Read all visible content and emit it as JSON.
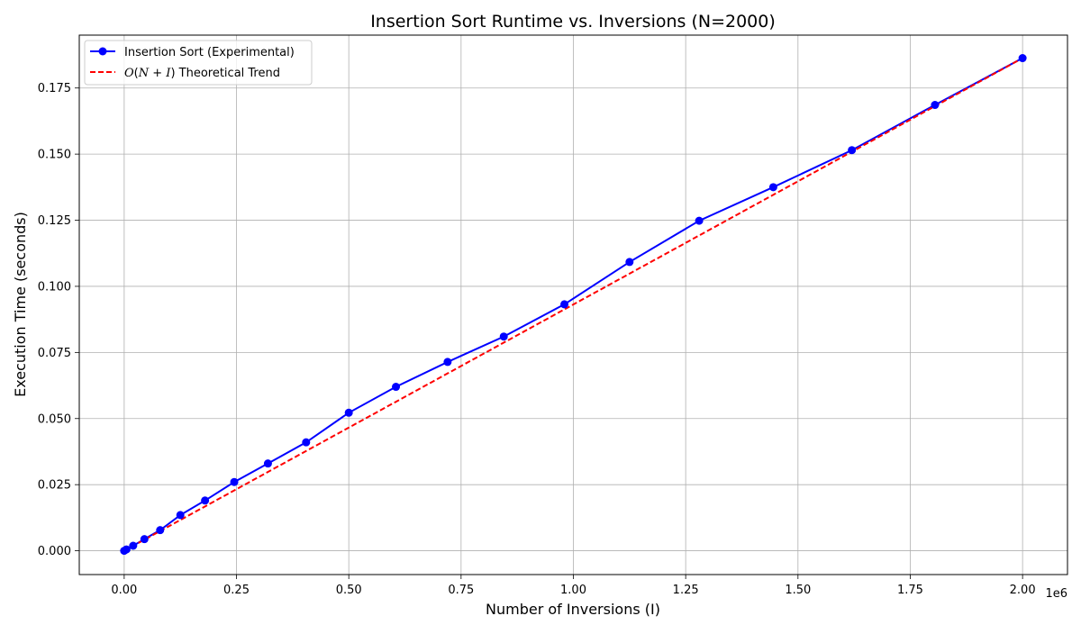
{
  "chart_data": {
    "type": "line",
    "title": "Insertion Sort Runtime vs. Inversions (N=2000)",
    "xlabel": "Number of Inversions (I)",
    "ylabel": "Execution Time (seconds)",
    "x_offset_label": "1e6",
    "xlim": [
      -0.1,
      2.1
    ],
    "ylim": [
      -0.009,
      0.195
    ],
    "x_ticks": [
      0.0,
      0.25,
      0.5,
      0.75,
      1.0,
      1.25,
      1.5,
      1.75,
      2.0
    ],
    "x_tick_labels": [
      "0.00",
      "0.25",
      "0.50",
      "0.75",
      "1.00",
      "1.25",
      "1.50",
      "1.75",
      "2.00"
    ],
    "y_ticks": [
      0.0,
      0.025,
      0.05,
      0.075,
      0.1,
      0.125,
      0.15,
      0.175
    ],
    "y_tick_labels": [
      "0.000",
      "0.025",
      "0.050",
      "0.075",
      "0.100",
      "0.125",
      "0.150",
      "0.175"
    ],
    "grid": true,
    "legend_position": "top-left",
    "series": [
      {
        "name": "Insertion Sort (Experimental)",
        "style": "solid-marker",
        "color": "#0000ff",
        "x": [
          0.0,
          0.005,
          0.02,
          0.045,
          0.08,
          0.125,
          0.18,
          0.245,
          0.32,
          0.405,
          0.5,
          0.605,
          0.72,
          0.845,
          0.98,
          1.125,
          1.28,
          1.445,
          1.62,
          1.805,
          2.0
        ],
        "y": [
          0.0,
          0.0005,
          0.0019,
          0.0044,
          0.0078,
          0.0135,
          0.019,
          0.026,
          0.033,
          0.041,
          0.0522,
          0.062,
          0.0714,
          0.081,
          0.0932,
          0.1092,
          0.1248,
          0.1375,
          0.1515,
          0.1686,
          0.1863
        ]
      },
      {
        "name_parts": [
          "O",
          "(",
          "N",
          " + ",
          "I",
          ")",
          " Theoretical Trend"
        ],
        "style": "dashed",
        "color": "#ff0000",
        "x": [
          0.0,
          2.0
        ],
        "y": [
          0.0,
          0.1863
        ]
      }
    ]
  }
}
